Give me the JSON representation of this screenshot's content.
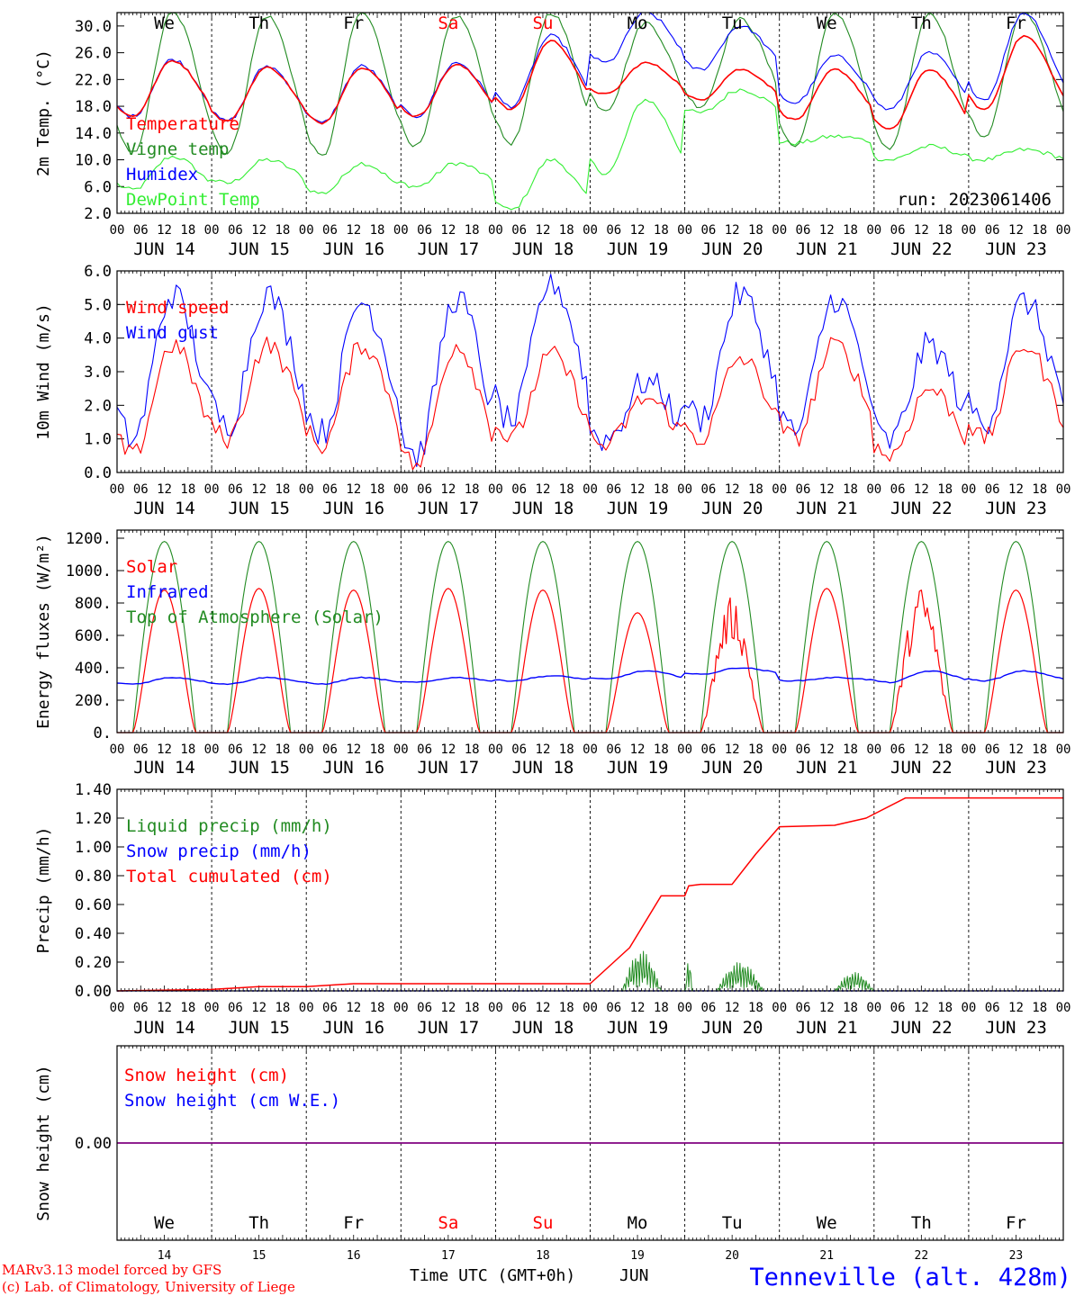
{
  "run_label": "run: 2023061406",
  "footer": {
    "model_line": "MARv3.13 model forced by GFS",
    "copyright_line": "(c) Lab. of Climatology, University of Liege",
    "xaxis_title": "Time UTC (GMT+0h)",
    "month_label": "JUN",
    "station": "Tenneville (alt. 428m)"
  },
  "days": {
    "weekdays": [
      "We",
      "Th",
      "Fr",
      "Sa",
      "Su",
      "Mo",
      "Tu",
      "We",
      "Th",
      "Fr"
    ],
    "weekend_flags": [
      false,
      false,
      false,
      true,
      true,
      false,
      false,
      false,
      false,
      false
    ],
    "day_numbers": [
      "14",
      "15",
      "16",
      "17",
      "18",
      "19",
      "20",
      "21",
      "22",
      "23"
    ],
    "date_labels": [
      "JUN 14",
      "JUN 15",
      "JUN 16",
      "JUN 17",
      "JUN 18",
      "JUN 19",
      "JUN 20",
      "JUN 21",
      "JUN 22",
      "JUN 23"
    ],
    "hour_ticks": [
      "00",
      "06",
      "12",
      "18"
    ],
    "final_tick": "00"
  },
  "colors": {
    "red": "#ff0000",
    "green": "#228b22",
    "blue": "#0000ff",
    "lightgreen": "#33ee33",
    "purple": "#800080",
    "station_blue": "#0000ff"
  },
  "chart_data": [
    {
      "type": "line",
      "ylabel": "2m Temp. (°C)",
      "ylim": [
        2,
        32
      ],
      "yticks": [
        "2.0",
        "6.0",
        "10.0",
        "14.0",
        "18.0",
        "22.0",
        "26.0",
        "30.0"
      ],
      "ytick_values": [
        2,
        6,
        10,
        14,
        18,
        22,
        26,
        30
      ],
      "x_unit": "hours since JUN 14 00 UTC",
      "xlim": [
        0,
        240
      ],
      "legend": [
        {
          "name": "Temperature",
          "color": "#ff0000"
        },
        {
          "name": "Vigne temp",
          "color": "#228b22"
        },
        {
          "name": "Humidex",
          "color": "#0000ff"
        },
        {
          "name": "DewPoint Temp",
          "color": "#33ee33"
        }
      ],
      "daily": {
        "Temperature": {
          "min": [
            16.5,
            15.8,
            15.5,
            16.5,
            17.5,
            19.8,
            19.0,
            16.0,
            14.5,
            17.5
          ],
          "max": [
            24.8,
            23.8,
            23.8,
            24.2,
            27.8,
            24.5,
            23.5,
            23.5,
            23.5,
            28.5
          ]
        },
        "Vigne temp": {
          "min": [
            11.0,
            11.0,
            10.5,
            12.0,
            12.5,
            17.5,
            18.0,
            12.0,
            11.5,
            13.5
          ],
          "max": [
            32.0,
            31.5,
            32.0,
            31.5,
            32.0,
            30.5,
            31.0,
            32.0,
            32.0,
            32.0
          ]
        },
        "Humidex": {
          "min": [
            16.5,
            15.8,
            15.5,
            16.5,
            18.0,
            24.5,
            23.5,
            18.5,
            17.5,
            19.0
          ],
          "max": [
            25.0,
            24.0,
            24.0,
            24.5,
            28.5,
            32.0,
            30.0,
            25.5,
            26.0,
            32.0
          ]
        },
        "DewPoint Temp": {
          "min": [
            5.5,
            6.5,
            5.0,
            6.0,
            2.5,
            8.0,
            17.0,
            12.5,
            10.0,
            10.0
          ],
          "max": [
            10.5,
            10.0,
            9.5,
            9.5,
            10.0,
            19.0,
            20.5,
            13.5,
            12.0,
            11.5
          ]
        }
      }
    },
    {
      "type": "line",
      "ylabel": "10m Wind (m/s)",
      "ylim": [
        0,
        6
      ],
      "yticks": [
        "0.0",
        "1.0",
        "2.0",
        "3.0",
        "4.0",
        "5.0",
        "6.0"
      ],
      "ytick_values": [
        0,
        1,
        2,
        3,
        4,
        5,
        6
      ],
      "reference_line": 5,
      "xlim": [
        0,
        240
      ],
      "legend": [
        {
          "name": "Wind speed",
          "color": "#ff0000"
        },
        {
          "name": "Wind gust",
          "color": "#0000ff"
        }
      ],
      "daily": {
        "Wind speed": {
          "min": [
            0.5,
            1.0,
            0.8,
            0.2,
            1.0,
            0.8,
            1.0,
            1.0,
            0.5,
            1.0
          ],
          "max": [
            3.8,
            3.8,
            3.8,
            3.8,
            3.5,
            2.2,
            3.4,
            3.8,
            2.5,
            3.8
          ]
        },
        "Wind gust": {
          "min": [
            1.0,
            1.4,
            1.2,
            0.5,
            1.5,
            1.0,
            1.6,
            1.2,
            0.9,
            1.5
          ],
          "max": [
            5.3,
            5.3,
            5.1,
            5.2,
            5.7,
            2.7,
            5.3,
            5.2,
            3.8,
            5.1
          ]
        }
      }
    },
    {
      "type": "line",
      "ylabel": "Energy fluxes (W/m²)",
      "ylim": [
        0,
        1250
      ],
      "yticks": [
        "0.",
        "200.",
        "400.",
        "600.",
        "800.",
        "1000.",
        "1200."
      ],
      "ytick_values": [
        0,
        200,
        400,
        600,
        800,
        1000,
        1200
      ],
      "xlim": [
        0,
        240
      ],
      "legend": [
        {
          "name": "Solar",
          "color": "#ff0000"
        },
        {
          "name": "Infrared",
          "color": "#0000ff"
        },
        {
          "name": "Top of Atmosphere (Solar)",
          "color": "#228b22"
        }
      ],
      "daily": {
        "Solar": {
          "max": [
            880,
            890,
            880,
            890,
            880,
            740,
            800,
            890,
            870,
            880
          ]
        },
        "Infrared": {
          "min": [
            300,
            300,
            300,
            310,
            320,
            330,
            360,
            320,
            310,
            320
          ],
          "max": [
            340,
            340,
            340,
            340,
            350,
            380,
            400,
            340,
            380,
            380
          ]
        },
        "Top of Atmosphere (Solar)": {
          "max": [
            1180,
            1180,
            1180,
            1180,
            1180,
            1180,
            1180,
            1180,
            1180,
            1180
          ]
        }
      }
    },
    {
      "type": "line",
      "ylabel": "Precip (mm/h)",
      "ylim": [
        0,
        1.4
      ],
      "yticks": [
        "0.00",
        "0.20",
        "0.40",
        "0.60",
        "0.80",
        "1.00",
        "1.20",
        "1.40"
      ],
      "ytick_values": [
        0,
        0.2,
        0.4,
        0.6,
        0.8,
        1.0,
        1.2,
        1.4
      ],
      "xlim": [
        0,
        240
      ],
      "legend": [
        {
          "name": "Liquid precip (mm/h)",
          "color": "#228b22"
        },
        {
          "name": "Snow precip (mm/h)",
          "color": "#0000ff"
        },
        {
          "name": "Total cumulated (cm)",
          "color": "#ff0000"
        }
      ],
      "total_cumulated": {
        "x": [
          0,
          24,
          36,
          48,
          54,
          60,
          120,
          130,
          138,
          144,
          145,
          148,
          156,
          162,
          168,
          182,
          190,
          200,
          240
        ],
        "y": [
          0,
          0.01,
          0.03,
          0.03,
          0.04,
          0.05,
          0.05,
          0.3,
          0.66,
          0.66,
          0.73,
          0.74,
          0.74,
          0.95,
          1.14,
          1.15,
          1.2,
          1.34,
          1.34
        ]
      },
      "liquid_bursts": [
        {
          "start": 128,
          "end": 138,
          "peak": 0.28
        },
        {
          "start": 144,
          "end": 146,
          "peak": 0.22
        },
        {
          "start": 152,
          "end": 164,
          "peak": 0.2
        },
        {
          "start": 182,
          "end": 192,
          "peak": 0.13
        }
      ]
    },
    {
      "type": "line",
      "ylabel": "Snow height (cm)",
      "ylim": [
        -1,
        1
      ],
      "yticks": [
        "0.00"
      ],
      "ytick_values": [
        0
      ],
      "xlim": [
        0,
        240
      ],
      "legend": [
        {
          "name": "Snow height (cm)",
          "color": "#ff0000"
        },
        {
          "name": "Snow height (cm W.E.)",
          "color": "#0000ff"
        }
      ],
      "values_constant": 0
    }
  ]
}
